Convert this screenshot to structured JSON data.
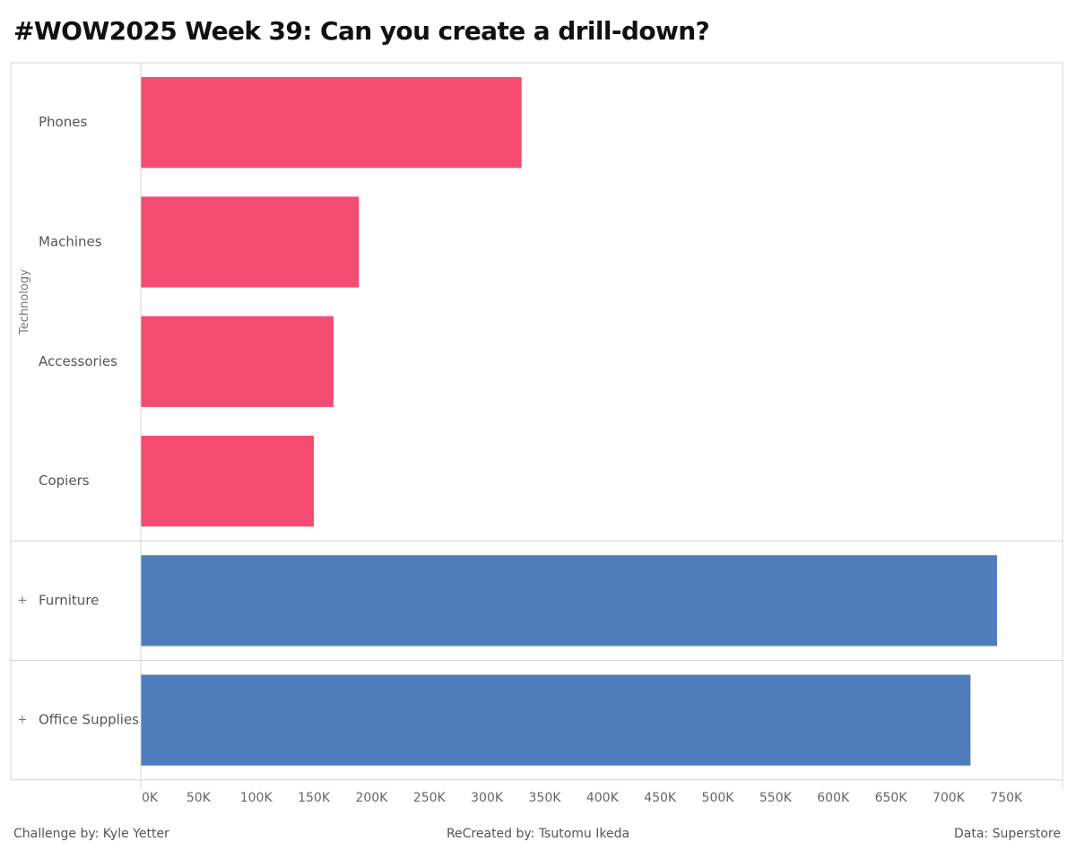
{
  "title": "#WOW2025 Week 39: Can you create a drill-down?",
  "chart_data": {
    "type": "bar",
    "orientation": "horizontal",
    "groups": [
      {
        "name": "Technology",
        "expanded": true,
        "expand_symbol": "",
        "color": "#f44b72",
        "items": [
          {
            "label": "Phones",
            "value": 330000
          },
          {
            "label": "Machines",
            "value": 189000
          },
          {
            "label": "Accessories",
            "value": 167000
          },
          {
            "label": "Copiers",
            "value": 150000
          }
        ]
      },
      {
        "name": "",
        "expanded": false,
        "expand_symbol": "+",
        "color": "#4f7dbb",
        "items": [
          {
            "label": "Furniture",
            "value": 742000
          }
        ]
      },
      {
        "name": "",
        "expanded": false,
        "expand_symbol": "+",
        "color": "#4f7dbb",
        "items": [
          {
            "label": "Office Supplies",
            "value": 719000
          }
        ]
      }
    ],
    "x_ticks": [
      0,
      50000,
      100000,
      150000,
      200000,
      250000,
      300000,
      350000,
      400000,
      450000,
      500000,
      550000,
      600000,
      650000,
      700000,
      750000
    ],
    "x_tick_labels": [
      "0K",
      "50K",
      "100K",
      "150K",
      "200K",
      "250K",
      "300K",
      "350K",
      "400K",
      "450K",
      "500K",
      "550K",
      "600K",
      "650K",
      "700K",
      "750K"
    ],
    "xlim": [
      0,
      770000
    ],
    "grid": false,
    "legend": "none"
  },
  "footer": {
    "left": "Challenge by: Kyle Yetter",
    "center": "ReCreated by: Tsutomu Ikeda",
    "right": "Data: Superstore"
  }
}
